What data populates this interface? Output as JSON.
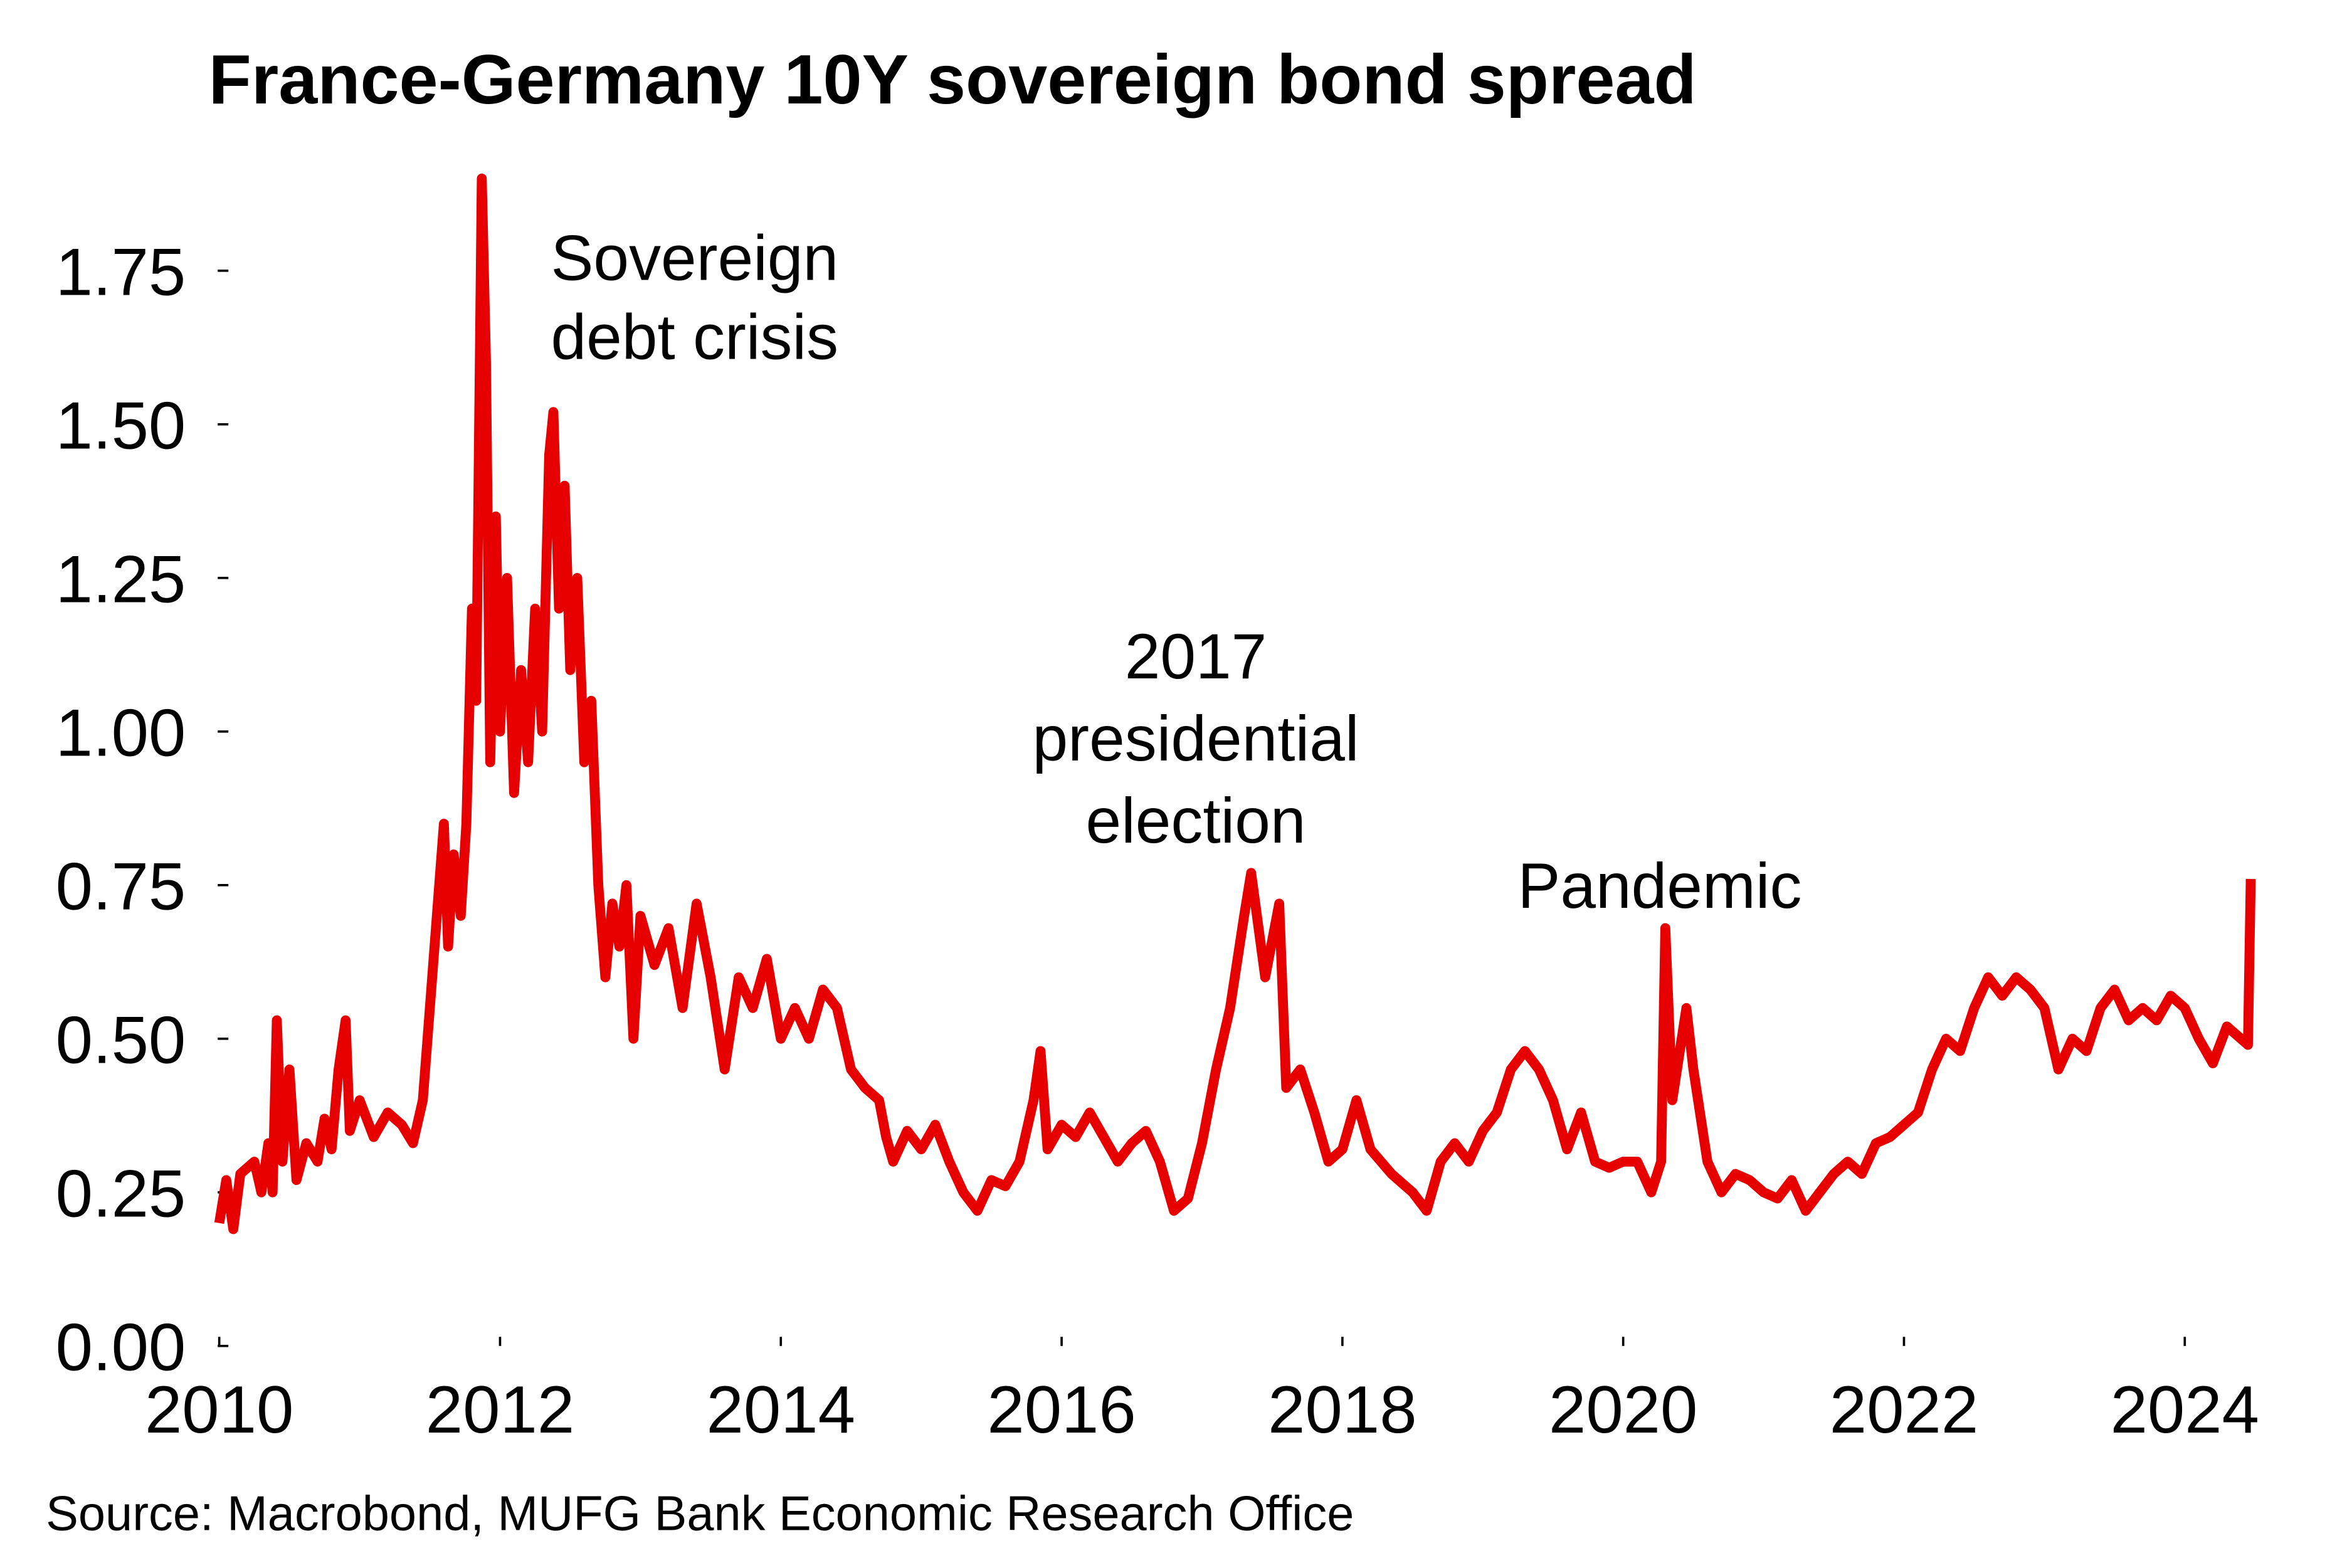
{
  "chart_data": {
    "type": "line",
    "title": "France-Germany 10Y sovereign bond spread",
    "source": "Source: Macrobond, MUFG Bank Economic Research Office",
    "annotations": [
      {
        "lines": [
          "Sovereign",
          "debt crisis"
        ]
      },
      {
        "lines": [
          "2017",
          "presidential",
          "election"
        ]
      },
      {
        "lines": [
          "Pandemic"
        ]
      }
    ],
    "xlim": [
      2010,
      2024.6
    ],
    "xticks": [
      2010,
      2012,
      2014,
      2016,
      2018,
      2020,
      2022,
      2024
    ],
    "ylim": [
      0,
      1.9
    ],
    "yticks": [
      {
        "value": 0,
        "label": "0.00"
      },
      0.25,
      {
        "value": 0.5,
        "label": "0.50"
      },
      0.75,
      {
        "value": 1,
        "label": "1.00"
      },
      1.25,
      {
        "value": 1.5,
        "label": "1.50"
      },
      1.75
    ],
    "grid": false,
    "x": [
      2010.0,
      2010.05,
      2010.1,
      2010.15,
      2010.25,
      2010.3,
      2010.35,
      2010.38,
      2010.41,
      2010.45,
      2010.5,
      2010.55,
      2010.62,
      2010.7,
      2010.75,
      2010.8,
      2010.85,
      2010.9,
      2010.93,
      2011.0,
      2011.1,
      2011.2,
      2011.3,
      2011.38,
      2011.45,
      2011.5,
      2011.55,
      2011.6,
      2011.63,
      2011.67,
      2011.72,
      2011.76,
      2011.8,
      2011.83,
      2011.87,
      2011.9,
      2011.93,
      2011.97,
      2012.0,
      2012.05,
      2012.1,
      2012.15,
      2012.2,
      2012.25,
      2012.3,
      2012.35,
      2012.38,
      2012.42,
      2012.46,
      2012.5,
      2012.55,
      2012.6,
      2012.65,
      2012.7,
      2012.75,
      2012.8,
      2012.85,
      2012.9,
      2012.95,
      2013.0,
      2013.1,
      2013.2,
      2013.3,
      2013.4,
      2013.5,
      2013.6,
      2013.7,
      2013.8,
      2013.9,
      2014.0,
      2014.1,
      2014.2,
      2014.3,
      2014.4,
      2014.5,
      2014.6,
      2014.7,
      2014.75,
      2014.8,
      2014.9,
      2015.0,
      2015.1,
      2015.2,
      2015.3,
      2015.4,
      2015.5,
      2015.6,
      2015.7,
      2015.8,
      2015.85,
      2015.9,
      2016.0,
      2016.1,
      2016.2,
      2016.3,
      2016.4,
      2016.5,
      2016.6,
      2016.7,
      2016.8,
      2016.9,
      2017.0,
      2017.1,
      2017.2,
      2017.3,
      2017.35,
      2017.45,
      2017.55,
      2017.6,
      2017.7,
      2017.8,
      2017.9,
      2018.0,
      2018.1,
      2018.2,
      2018.35,
      2018.5,
      2018.6,
      2018.7,
      2018.8,
      2018.9,
      2019.0,
      2019.1,
      2019.2,
      2019.3,
      2019.4,
      2019.5,
      2019.6,
      2019.7,
      2019.8,
      2019.9,
      2020.0,
      2020.1,
      2020.2,
      2020.27,
      2020.3,
      2020.35,
      2020.45,
      2020.5,
      2020.6,
      2020.7,
      2020.8,
      2020.9,
      2021.0,
      2021.1,
      2021.2,
      2021.3,
      2021.4,
      2021.5,
      2021.6,
      2021.7,
      2021.8,
      2021.9,
      2022.0,
      2022.1,
      2022.2,
      2022.3,
      2022.4,
      2022.5,
      2022.6,
      2022.7,
      2022.8,
      2022.9,
      2023.0,
      2023.1,
      2023.2,
      2023.3,
      2023.4,
      2023.5,
      2023.6,
      2023.7,
      2023.8,
      2023.9,
      2024.0,
      2024.1,
      2024.2,
      2024.3,
      2024.4,
      2024.45,
      2024.47
    ],
    "series": [
      {
        "color": "#e60000",
        "values": [
          0.2,
          0.27,
          0.19,
          0.28,
          0.3,
          0.25,
          0.33,
          0.25,
          0.53,
          0.3,
          0.45,
          0.27,
          0.33,
          0.3,
          0.37,
          0.32,
          0.45,
          0.53,
          0.35,
          0.4,
          0.34,
          0.38,
          0.36,
          0.33,
          0.4,
          0.55,
          0.7,
          0.85,
          0.65,
          0.8,
          0.7,
          0.85,
          1.2,
          1.05,
          1.9,
          1.6,
          0.95,
          1.35,
          1.0,
          1.25,
          0.9,
          1.1,
          0.95,
          1.2,
          1.0,
          1.45,
          1.52,
          1.2,
          1.4,
          1.1,
          1.25,
          0.95,
          1.05,
          0.75,
          0.6,
          0.72,
          0.65,
          0.75,
          0.5,
          0.7,
          0.62,
          0.68,
          0.55,
          0.72,
          0.6,
          0.45,
          0.6,
          0.55,
          0.63,
          0.5,
          0.55,
          0.5,
          0.58,
          0.55,
          0.45,
          0.42,
          0.4,
          0.34,
          0.3,
          0.35,
          0.32,
          0.36,
          0.3,
          0.25,
          0.22,
          0.27,
          0.26,
          0.3,
          0.4,
          0.48,
          0.32,
          0.36,
          0.34,
          0.38,
          0.34,
          0.3,
          0.33,
          0.35,
          0.3,
          0.22,
          0.24,
          0.33,
          0.45,
          0.55,
          0.7,
          0.77,
          0.6,
          0.72,
          0.42,
          0.45,
          0.38,
          0.3,
          0.32,
          0.4,
          0.32,
          0.28,
          0.25,
          0.22,
          0.3,
          0.33,
          0.3,
          0.35,
          0.38,
          0.45,
          0.48,
          0.45,
          0.4,
          0.32,
          0.38,
          0.3,
          0.29,
          0.3,
          0.3,
          0.25,
          0.3,
          0.68,
          0.4,
          0.55,
          0.45,
          0.3,
          0.25,
          0.28,
          0.27,
          0.25,
          0.24,
          0.27,
          0.22,
          0.25,
          0.28,
          0.3,
          0.28,
          0.33,
          0.34,
          0.36,
          0.38,
          0.45,
          0.5,
          0.48,
          0.55,
          0.6,
          0.57,
          0.6,
          0.58,
          0.55,
          0.45,
          0.5,
          0.48,
          0.55,
          0.58,
          0.53,
          0.55,
          0.53,
          0.57,
          0.55,
          0.5,
          0.46,
          0.52,
          0.5,
          0.49,
          0.76
        ]
      }
    ]
  }
}
